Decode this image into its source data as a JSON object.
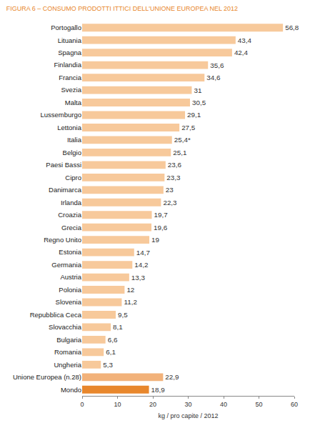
{
  "chart_data": {
    "type": "bar",
    "orientation": "horizontal",
    "title": "FIGURA 6 – CONSUMO PRODOTTI ITTICI DELL'UNIONE EUROPEA NEL 2012",
    "xlabel": "kg / pro capite / 2012",
    "categories": [
      "Portogallo",
      "Lituania",
      "Spagna",
      "Finlandia",
      "Francia",
      "Svezia",
      "Malta",
      "Lussemburgo",
      "Lettonia",
      "Italia",
      "Belgio",
      "Paesi Bassi",
      "Cipro",
      "Danimarca",
      "Irlanda",
      "Croazia",
      "Grecia",
      "Regno Unito",
      "Estonia",
      "Germania",
      "Austria",
      "Polonia",
      "Slovenia",
      "Repubblica Ceca",
      "Slovacchia",
      "Bulgaria",
      "Romania",
      "Ungheria",
      "Unione Europea (n.28)",
      "Mondo"
    ],
    "values": [
      56.8,
      43.4,
      42.4,
      35.6,
      34.6,
      31,
      30.5,
      29.1,
      27.5,
      25.4,
      25.1,
      23.6,
      23.3,
      23,
      22.3,
      19.7,
      19.6,
      19,
      14.7,
      14.2,
      13.3,
      12,
      11.2,
      9.5,
      8.1,
      6.6,
      6.1,
      5.3,
      22.9,
      18.9
    ],
    "value_labels": [
      "56,8",
      "43,4",
      "42,4",
      "35,6",
      "34,6",
      "31",
      "30,5",
      "29,1",
      "27,5",
      "25,4*",
      "25,1",
      "23,6",
      "23,3",
      "23",
      "22,3",
      "19,7",
      "19,6",
      "19",
      "14,7",
      "14,2",
      "13,3",
      "12",
      "11,2",
      "9,5",
      "8,1",
      "6,6",
      "6,1",
      "5,3",
      "22,9",
      "18,9"
    ],
    "colors": [
      "#f7c99b",
      "#f7c99b",
      "#f7c99b",
      "#f7c99b",
      "#f7c99b",
      "#f7c99b",
      "#f7c99b",
      "#f7c99b",
      "#f7c99b",
      "#f7c99b",
      "#f7c99b",
      "#f7c99b",
      "#f7c99b",
      "#f7c99b",
      "#f7c99b",
      "#f7c99b",
      "#f7c99b",
      "#f7c99b",
      "#f7c99b",
      "#f7c99b",
      "#f7c99b",
      "#f7c99b",
      "#f7c99b",
      "#f7c99b",
      "#f7c99b",
      "#f7c99b",
      "#f7c99b",
      "#f7c99b",
      "#f2b27a",
      "#e8872c"
    ],
    "xlim": [
      0,
      60
    ],
    "xticks": [
      0,
      10,
      20,
      30,
      40,
      50,
      60
    ],
    "data_labels": true,
    "grid": false
  }
}
